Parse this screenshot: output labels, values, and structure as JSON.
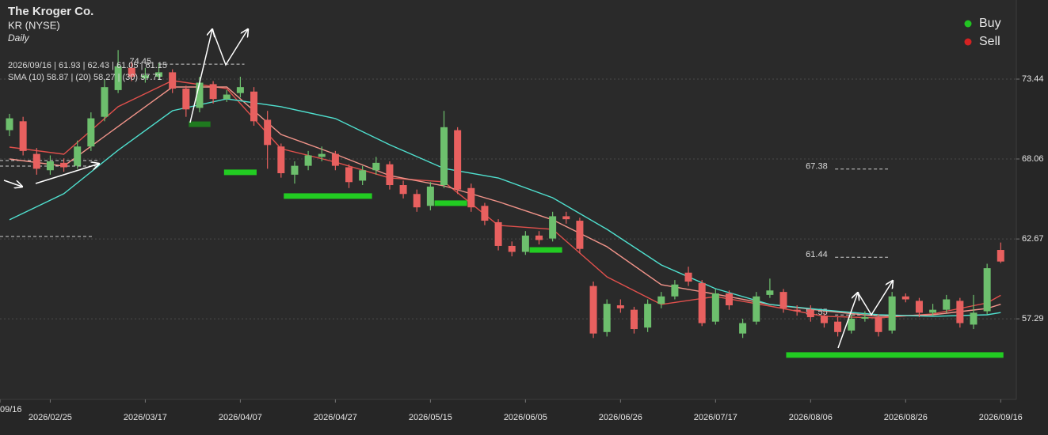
{
  "chart_data": {
    "type": "candlestick",
    "title": "The Kroger Co.",
    "subtitle": "KR (NYSE)",
    "interval": "Daily",
    "info_line": "2026/09/16 | 61.93 | 62.43 | 61.05 | 61.15",
    "sma_line": "SMA (10) 58.87 | (20) 58.27 | (30) 57.71",
    "ylim": [
      51.86,
      78.77
    ],
    "yticks": [
      57.29,
      62.67,
      68.06,
      73.44
    ],
    "xlim": [
      -0.7,
      74.15
    ],
    "xticks": [
      {
        "value": -0.7,
        "label": "09/16"
      },
      {
        "value": 3,
        "label": "2026/02/25"
      },
      {
        "value": 10,
        "label": "2026/03/17"
      },
      {
        "value": 17,
        "label": "2026/04/07"
      },
      {
        "value": 24,
        "label": "2026/04/27"
      },
      {
        "value": 31,
        "label": "2026/05/15"
      },
      {
        "value": 38,
        "label": "2026/06/05"
      },
      {
        "value": 45,
        "label": "2026/06/26"
      },
      {
        "value": 52,
        "label": "2026/07/17"
      },
      {
        "value": 59,
        "label": "2026/08/06"
      },
      {
        "value": 66,
        "label": "2026/08/26"
      },
      {
        "value": 73,
        "label": "2026/09/16"
      }
    ],
    "grid": true,
    "up_color": "#6dbf6d",
    "down_color": "#e8605f",
    "candles": [
      [
        70.0,
        71.1,
        69.6,
        70.8
      ],
      [
        70.6,
        70.9,
        68.3,
        68.6
      ],
      [
        68.4,
        68.8,
        67.0,
        67.4
      ],
      [
        67.3,
        68.3,
        67.0,
        67.9
      ],
      [
        67.8,
        68.1,
        67.2,
        67.5
      ],
      [
        67.6,
        69.3,
        67.4,
        68.9
      ],
      [
        68.9,
        71.2,
        68.6,
        70.8
      ],
      [
        70.9,
        73.4,
        70.6,
        72.9
      ],
      [
        72.7,
        75.4,
        72.5,
        74.3
      ],
      [
        74.2,
        74.6,
        73.3,
        73.6
      ],
      [
        73.5,
        74.2,
        73.2,
        73.7
      ],
      [
        73.6,
        74.5,
        73.4,
        73.9
      ],
      [
        73.9,
        74.1,
        72.5,
        72.8
      ],
      [
        72.8,
        73.0,
        70.9,
        71.4
      ],
      [
        71.5,
        73.6,
        71.2,
        73.2
      ],
      [
        73.1,
        73.3,
        71.8,
        72.1
      ],
      [
        72.1,
        72.7,
        71.9,
        72.4
      ],
      [
        72.5,
        73.6,
        72.2,
        72.9
      ],
      [
        72.6,
        72.9,
        70.3,
        70.6
      ],
      [
        70.7,
        71.3,
        67.4,
        69.0
      ],
      [
        68.9,
        69.1,
        66.8,
        67.1
      ],
      [
        67.0,
        67.9,
        66.4,
        67.6
      ],
      [
        67.6,
        68.6,
        67.3,
        68.3
      ],
      [
        68.2,
        68.9,
        67.9,
        68.4
      ],
      [
        68.4,
        68.6,
        67.3,
        67.6
      ],
      [
        67.5,
        67.7,
        66.1,
        66.5
      ],
      [
        66.6,
        67.6,
        66.3,
        67.3
      ],
      [
        67.3,
        68.2,
        67.0,
        67.8
      ],
      [
        67.7,
        67.9,
        66.0,
        66.3
      ],
      [
        66.3,
        66.6,
        65.4,
        65.7
      ],
      [
        65.7,
        66.0,
        64.5,
        64.8
      ],
      [
        64.9,
        66.5,
        64.6,
        66.2
      ],
      [
        66.3,
        71.3,
        66.1,
        70.2
      ],
      [
        70.0,
        70.2,
        65.7,
        66.0
      ],
      [
        66.1,
        66.4,
        64.5,
        64.8
      ],
      [
        64.9,
        65.1,
        63.6,
        63.9
      ],
      [
        63.8,
        64.0,
        61.9,
        62.2
      ],
      [
        62.2,
        62.5,
        61.5,
        61.8
      ],
      [
        61.8,
        63.2,
        61.6,
        62.9
      ],
      [
        62.9,
        63.2,
        62.3,
        62.6
      ],
      [
        62.7,
        64.5,
        62.5,
        64.2
      ],
      [
        64.2,
        64.5,
        63.7,
        64.0
      ],
      [
        63.9,
        64.1,
        61.7,
        62.0
      ],
      [
        59.5,
        59.8,
        56.0,
        56.3
      ],
      [
        56.4,
        58.6,
        56.1,
        58.3
      ],
      [
        58.2,
        58.6,
        57.7,
        58.0
      ],
      [
        57.9,
        58.1,
        56.3,
        56.6
      ],
      [
        56.7,
        58.6,
        56.4,
        58.3
      ],
      [
        58.3,
        59.1,
        58.0,
        58.8
      ],
      [
        58.8,
        59.9,
        58.6,
        59.6
      ],
      [
        60.4,
        60.8,
        59.5,
        59.8
      ],
      [
        59.7,
        59.9,
        56.8,
        57.0
      ],
      [
        57.1,
        59.3,
        56.9,
        59.0
      ],
      [
        59.0,
        59.2,
        57.9,
        58.2
      ],
      [
        56.3,
        57.3,
        56.0,
        57.0
      ],
      [
        57.1,
        59.1,
        56.9,
        58.8
      ],
      [
        58.9,
        60.0,
        58.7,
        59.2
      ],
      [
        59.1,
        59.3,
        57.7,
        58.0
      ],
      [
        57.9,
        58.2,
        57.5,
        57.8
      ],
      [
        57.9,
        58.2,
        57.1,
        57.4
      ],
      [
        57.5,
        57.7,
        56.7,
        57.0
      ],
      [
        57.1,
        57.4,
        56.1,
        56.4
      ],
      [
        56.5,
        57.6,
        56.3,
        57.3
      ],
      [
        57.3,
        57.8,
        57.1,
        57.4
      ],
      [
        57.4,
        57.6,
        56.1,
        56.4
      ],
      [
        56.5,
        59.1,
        56.3,
        58.8
      ],
      [
        58.8,
        59.0,
        58.4,
        58.6
      ],
      [
        58.5,
        58.7,
        57.4,
        57.7
      ],
      [
        57.7,
        58.3,
        57.5,
        57.9
      ],
      [
        57.9,
        58.9,
        57.7,
        58.6
      ],
      [
        58.5,
        58.7,
        56.7,
        57.0
      ],
      [
        56.9,
        58.9,
        56.6,
        57.7
      ],
      [
        57.8,
        61.0,
        57.6,
        60.7
      ],
      [
        61.93,
        62.43,
        61.05,
        61.15
      ]
    ],
    "sma": [
      {
        "color": "#e0504c",
        "x": [
          0,
          4,
          8,
          12,
          16,
          20,
          24,
          28,
          32,
          36,
          40,
          44,
          48,
          52,
          56,
          60,
          64,
          68,
          72,
          73
        ],
        "values": [
          68.86,
          68.38,
          71.58,
          73.34,
          72.8,
          68.75,
          67.85,
          66.78,
          66.52,
          63.59,
          63.32,
          60.12,
          58.26,
          58.79,
          58.15,
          57.46,
          57.35,
          57.62,
          58.36,
          58.87
        ]
      },
      {
        "color": "#f2948a",
        "x": [
          0,
          4,
          8,
          12,
          16,
          20,
          24,
          28,
          32,
          36,
          40,
          44,
          48,
          52,
          56,
          60,
          64,
          68,
          72,
          73
        ],
        "values": [
          68.06,
          67.58,
          70.25,
          72.91,
          72.91,
          69.71,
          68.38,
          66.94,
          66.25,
          65.18,
          63.96,
          62.15,
          59.59,
          58.95,
          58.26,
          57.83,
          57.46,
          57.56,
          57.99,
          58.27
        ]
      },
      {
        "color": "#4fe0cf",
        "x": [
          0,
          4,
          8,
          12,
          16,
          20,
          24,
          28,
          32,
          36,
          40,
          44,
          48,
          52,
          56,
          60,
          64,
          68,
          72,
          73
        ],
        "values": [
          63.96,
          65.72,
          68.65,
          71.31,
          72.11,
          71.58,
          70.78,
          69.02,
          67.42,
          66.78,
          65.45,
          63.32,
          60.92,
          59.32,
          58.26,
          57.88,
          57.56,
          57.46,
          57.56,
          57.71
        ]
      }
    ],
    "levels": [
      {
        "value": 74.45,
        "from": 11,
        "to": 17.3,
        "labeled": true
      },
      {
        "value": 67.95,
        "from": -0.7,
        "to": 6.6,
        "labeled": false
      },
      {
        "value": 67.58,
        "from": -0.7,
        "to": 6.6,
        "labeled": false
      },
      {
        "value": 62.84,
        "from": -0.7,
        "to": 6.2,
        "labeled": false
      },
      {
        "value": 67.38,
        "from": 60.8,
        "to": 64.7,
        "labeled": true
      },
      {
        "value": 61.44,
        "from": 60.8,
        "to": 64.7,
        "labeled": true
      },
      {
        "value": 57.55,
        "from": 60.8,
        "to": 64.7,
        "labeled": true
      }
    ],
    "zones": [
      {
        "value": 70.4,
        "from": 13.2,
        "to": 14.8,
        "color": "#1f7a1f"
      },
      {
        "value": 67.16,
        "from": 15.8,
        "to": 18.2,
        "color": "#22cc22"
      },
      {
        "value": 65.56,
        "from": 20.2,
        "to": 26.7,
        "color": "#22cc22"
      },
      {
        "value": 65.08,
        "from": 31.3,
        "to": 33.7,
        "color": "#22cc22"
      },
      {
        "value": 61.93,
        "from": 38.3,
        "to": 40.7,
        "color": "#22cc22"
      },
      {
        "value": 54.85,
        "from": 57.2,
        "to": 73.2,
        "color": "#22cc22"
      }
    ],
    "legend_position": "top-right",
    "legend": [
      {
        "name": "Buy",
        "color": "#22c322"
      },
      {
        "name": "Sell",
        "color": "#d42222"
      }
    ]
  }
}
